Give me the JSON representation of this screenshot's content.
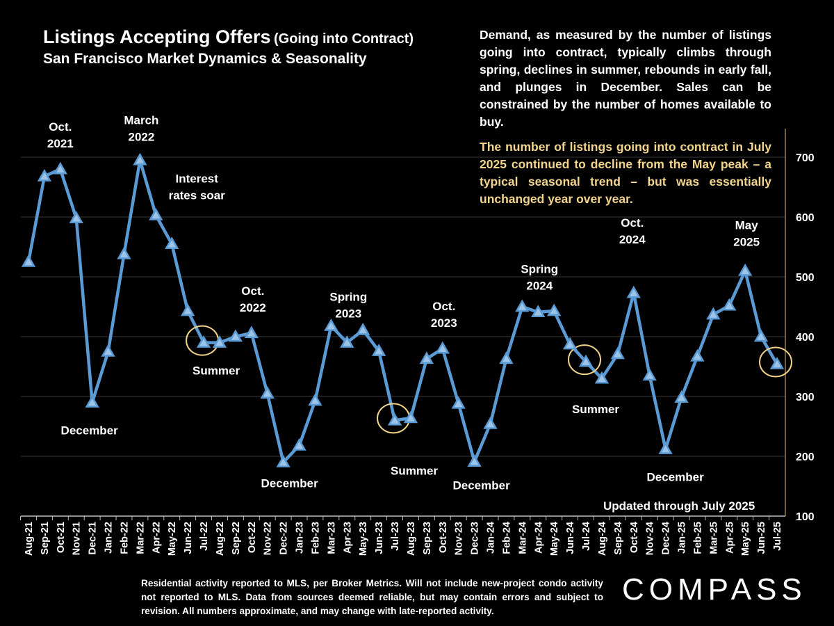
{
  "header": {
    "title_main": "Listings Accepting Offers",
    "title_sub": "(Going into Contract)",
    "subtitle": "San Francisco Market Dynamics & Seasonality"
  },
  "description": "Demand, as measured by the number of listings going into contract, typically climbs through spring, declines in summer, rebounds in early fall, and plunges in December.  Sales can be constrained by the number of homes available to  buy.",
  "highlight": "The number of listings going into contract in July 2025 continued to decline from the May peak – a typical seasonal trend – but was essentially unchanged year over year.",
  "updated": "Updated through July 2025",
  "footer": "Residential activity reported to MLS, per Broker Metrics. Will not include new-project condo activity not reported to MLS. Data from sources deemed reliable, but may contain errors and subject to revision. All numbers approximate, and may change with late-reported activity.",
  "logo": "COMPASS",
  "colors": {
    "line": "#5b9bd5",
    "marker": "#9dc3e6",
    "highlight_text": "#f4d58d",
    "circle": "#f1d38a",
    "axis": "#a07a4a",
    "grid": "#3a3a3a"
  },
  "chart_data": {
    "type": "line",
    "categories": [
      "Aug-21",
      "Sep-21",
      "Oct-21",
      "Nov-21",
      "Dec-21",
      "Jan-22",
      "Feb-22",
      "Mar-22",
      "Apr-22",
      "May-22",
      "Jun-22",
      "Jul-22",
      "Aug-22",
      "Sep-22",
      "Oct-22",
      "Nov-22",
      "Dec-22",
      "Jan-23",
      "Feb-23",
      "Mar-23",
      "Apr-23",
      "May-23",
      "Jun-23",
      "Jul-23",
      "Aug-23",
      "Sep-23",
      "Oct-23",
      "Nov-23",
      "Dec-23",
      "Jan-24",
      "Feb-24",
      "Mar-24",
      "Apr-24",
      "May-24",
      "Jun-24",
      "Jul-24",
      "Aug-24",
      "Sep-24",
      "Oct-24",
      "Nov-24",
      "Dec-24",
      "Jan-25",
      "Feb-25",
      "Mar-25",
      "Apr-25",
      "May-25",
      "Jun-25",
      "Jul-25"
    ],
    "series": [
      {
        "values": [
          525,
          668,
          680,
          598,
          290,
          375,
          538,
          695,
          603,
          555,
          443,
          390,
          390,
          400,
          406,
          305,
          190,
          218,
          293,
          418,
          390,
          411,
          376,
          260,
          264,
          363,
          380,
          288,
          191,
          254,
          363,
          450,
          441,
          443,
          387,
          358,
          330,
          371,
          473,
          335,
          212,
          298,
          367,
          437,
          452,
          510,
          400,
          354
        ]
      }
    ],
    "ylim": [
      100,
      700
    ],
    "yticks": [
      100,
      200,
      300,
      400,
      500,
      600,
      700
    ],
    "y_axis_side": "right",
    "grid": true,
    "annotations": [
      {
        "lines": [
          "Oct.",
          "2021"
        ],
        "category": "Oct-21"
      },
      {
        "lines": [
          "March",
          "2022"
        ],
        "category": "Mar-22"
      },
      {
        "lines": [
          "Interest",
          "rates soar"
        ],
        "category": "May-22"
      },
      {
        "lines": [
          "December"
        ],
        "category": "Dec-21"
      },
      {
        "lines": [
          "Summer"
        ],
        "category": "Jul-22"
      },
      {
        "lines": [
          "Oct.",
          "2022"
        ],
        "category": "Oct-22"
      },
      {
        "lines": [
          "December"
        ],
        "category": "Dec-22"
      },
      {
        "lines": [
          "Spring",
          "2023"
        ],
        "category": "Apr-23"
      },
      {
        "lines": [
          "Summer"
        ],
        "category": "Jul-23"
      },
      {
        "lines": [
          "Oct.",
          "2023"
        ],
        "category": "Oct-23"
      },
      {
        "lines": [
          "December"
        ],
        "category": "Dec-23"
      },
      {
        "lines": [
          "Spring",
          "2024"
        ],
        "category": "Apr-24"
      },
      {
        "lines": [
          "Summer"
        ],
        "category": "Jul-24"
      },
      {
        "lines": [
          "Oct.",
          "2024"
        ],
        "category": "Oct-24"
      },
      {
        "lines": [
          "December"
        ],
        "category": "Dec-24"
      },
      {
        "lines": [
          "May",
          "2025"
        ],
        "category": "May-25"
      }
    ],
    "circled": [
      "Jul-22",
      "Jul-23",
      "Jul-24",
      "Jul-25"
    ]
  }
}
